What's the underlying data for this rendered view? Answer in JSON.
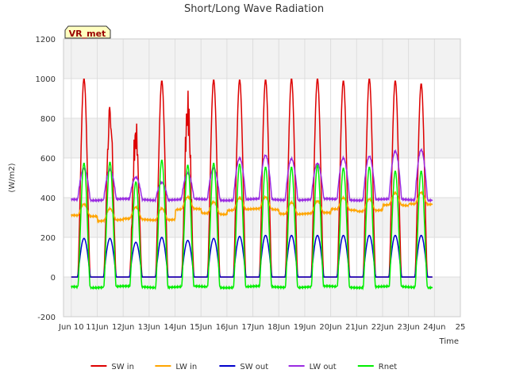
{
  "chart_data": {
    "type": "line",
    "title": "Short/Long Wave Radiation",
    "xlabel": "Time",
    "ylabel": "(W/m2)",
    "station_label": "VR_met",
    "ylim": [
      -200,
      1200
    ],
    "yticks": [
      -200,
      0,
      200,
      400,
      600,
      800,
      1000,
      1200
    ],
    "xlim": [
      9.7,
      25
    ],
    "xticks": [
      {
        "value": 10,
        "label": "Jun 10"
      },
      {
        "value": 11,
        "label": "11Jun"
      },
      {
        "value": 12,
        "label": "12Jun"
      },
      {
        "value": 13,
        "label": "13Jun"
      },
      {
        "value": 14,
        "label": "14Jun"
      },
      {
        "value": 15,
        "label": "15Jun"
      },
      {
        "value": 16,
        "label": "16Jun"
      },
      {
        "value": 17,
        "label": "17Jun"
      },
      {
        "value": 18,
        "label": "18Jun"
      },
      {
        "value": 19,
        "label": "19Jun"
      },
      {
        "value": 20,
        "label": "20Jun"
      },
      {
        "value": 21,
        "label": "21Jun"
      },
      {
        "value": 22,
        "label": "22Jun"
      },
      {
        "value": 23,
        "label": "23Jun"
      },
      {
        "value": 24,
        "label": "24Jun"
      },
      {
        "value": 25,
        "label": "25"
      }
    ],
    "grid": true,
    "legend_position": "bottom-center",
    "series": [
      {
        "name": "SW in",
        "color": "#dd0000",
        "daily_peak": [
          1000,
          990,
          840,
          990,
          965,
          995,
          995,
          995,
          1000,
          1000,
          990,
          1000,
          990,
          975
        ]
      },
      {
        "name": "LW in",
        "color": "#ffa500",
        "daily_peak": [
          370,
          345,
          350,
          350,
          400,
          380,
          400,
          400,
          380,
          380,
          400,
          395,
          420,
          430
        ]
      },
      {
        "name": "SW out",
        "color": "#0000cc",
        "daily_peak": [
          195,
          195,
          175,
          200,
          185,
          195,
          205,
          210,
          210,
          210,
          210,
          210,
          210,
          210
        ]
      },
      {
        "name": "LW out",
        "color": "#9a2be2",
        "daily_peak": [
          550,
          540,
          500,
          480,
          520,
          550,
          600,
          610,
          600,
          570,
          600,
          610,
          630,
          645
        ]
      },
      {
        "name": "Rnet",
        "color": "#00ee00",
        "daily_peak": [
          575,
          580,
          480,
          590,
          565,
          575,
          570,
          555,
          555,
          565,
          550,
          555,
          535,
          535
        ]
      }
    ]
  }
}
